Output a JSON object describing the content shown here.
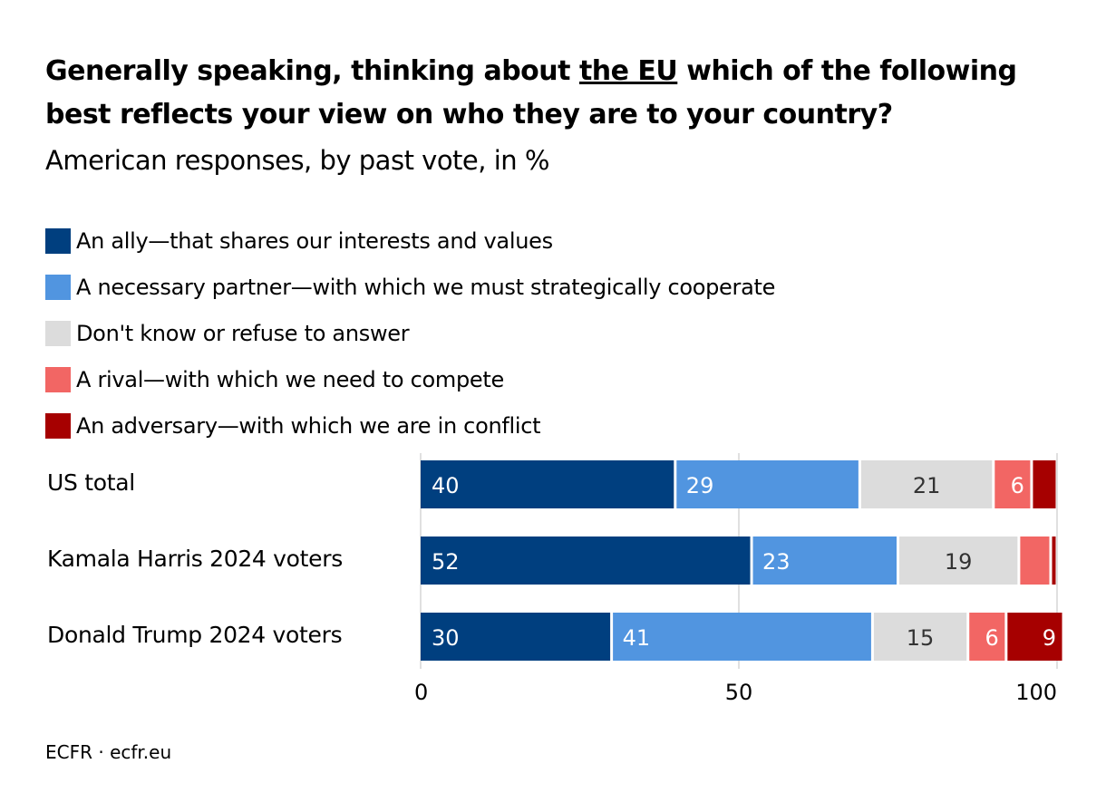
{
  "title": {
    "pre": "Generally speaking, thinking about ",
    "emph": "the EU",
    "post": " which of the following best reflects your view on who they are to your country?"
  },
  "subtitle": "American responses, by past vote, in %",
  "source": "ECFR · ecfr.eu",
  "chart_data": {
    "type": "bar",
    "stacked": true,
    "orientation": "horizontal",
    "categories": [
      "US total",
      "Kamala Harris 2024 voters",
      "Donald Trump 2024 voters"
    ],
    "series": [
      {
        "name": "An ally—that shares our interests and values",
        "color": "#003f7f",
        "values": [
          40,
          52,
          30
        ],
        "labels": [
          "40",
          "52",
          "30"
        ]
      },
      {
        "name": "A necessary partner—with which we must strategically cooperate",
        "color": "#5195e0",
        "values": [
          29,
          23,
          41
        ],
        "labels": [
          "29",
          "23",
          "41"
        ]
      },
      {
        "name": "Don't know or refuse to answer",
        "color": "#dcdcdc",
        "values": [
          21,
          19,
          15
        ],
        "labels": [
          "21",
          "19",
          "15"
        ]
      },
      {
        "name": "A rival—with which we need to compete",
        "color": "#f26664",
        "values": [
          6,
          5,
          6
        ],
        "labels": [
          "6",
          "",
          "6"
        ]
      },
      {
        "name": "An adversary—with which we are in conflict",
        "color": "#a60000",
        "values": [
          4,
          1,
          9
        ],
        "labels": [
          "",
          "",
          "9"
        ]
      }
    ],
    "xlim": [
      0,
      100
    ],
    "xticks": [
      0,
      50,
      100
    ],
    "grid": true,
    "legend": "top"
  }
}
